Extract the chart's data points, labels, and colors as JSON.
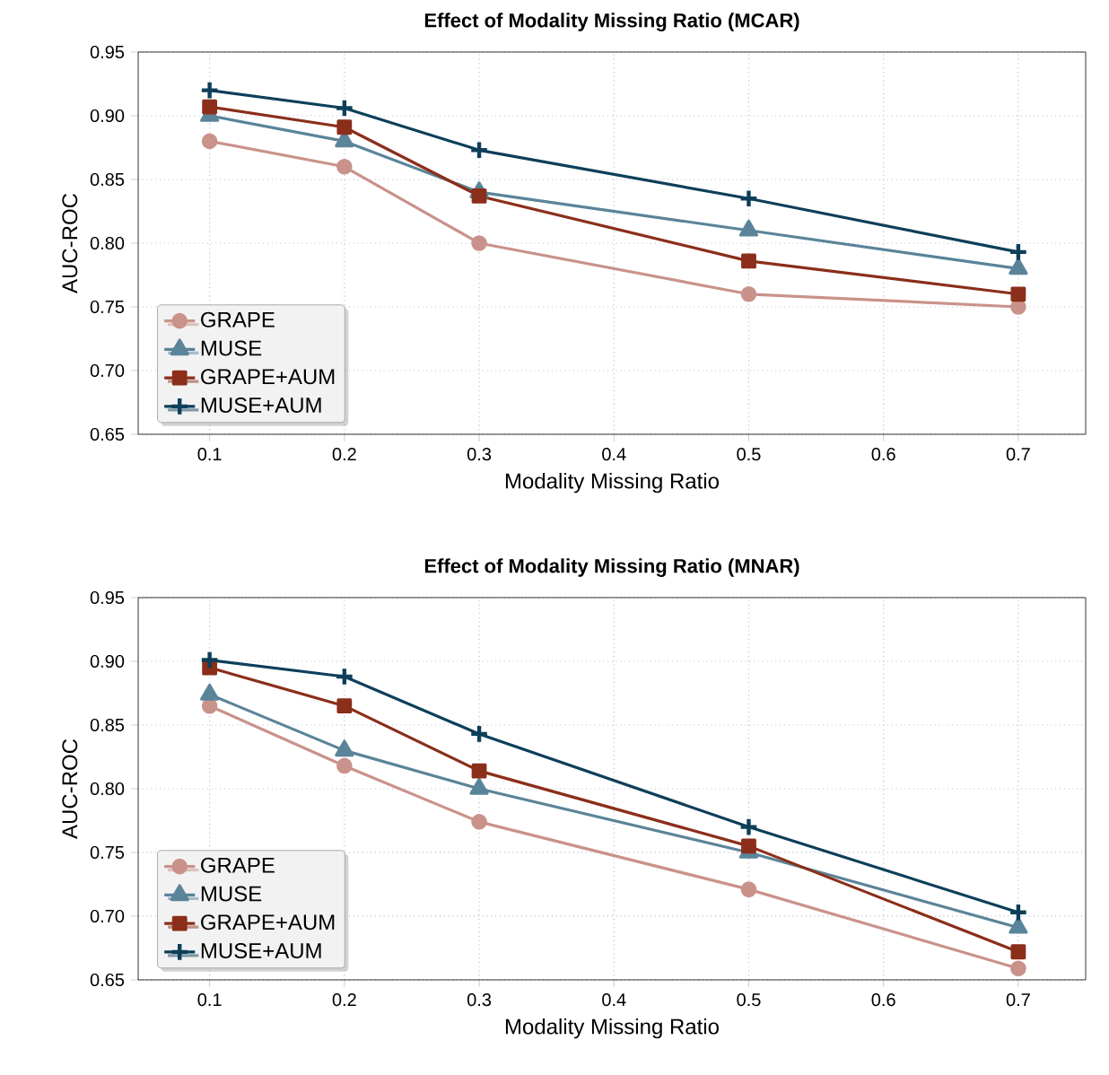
{
  "chart_data": [
    {
      "type": "line",
      "title": "**Effect of Modality Missing Ratio (MCAR)**",
      "xlabel": "Modality Missing Ratio",
      "ylabel": "AUC-ROC",
      "x": [
        0.1,
        0.2,
        0.3,
        0.5,
        0.7
      ],
      "series": [
        {
          "name": "GRAPE",
          "color": "#c9928a",
          "marker": "circle",
          "values": [
            0.88,
            0.86,
            0.8,
            0.76,
            0.75
          ]
        },
        {
          "name": "MUSE",
          "color": "#5a8499",
          "marker": "triangle",
          "values": [
            0.9,
            0.88,
            0.84,
            0.81,
            0.78
          ]
        },
        {
          "name": "GRAPE+AUM",
          "color": "#8b2e1a",
          "marker": "square",
          "values": [
            0.907,
            0.891,
            0.837,
            0.786,
            0.76
          ]
        },
        {
          "name": "MUSE+AUM",
          "color": "#0d3f5a",
          "marker": "cross",
          "values": [
            0.92,
            0.906,
            0.873,
            0.835,
            0.793
          ]
        }
      ],
      "xlim": [
        0.047,
        0.75
      ],
      "ylim": [
        0.65,
        0.95
      ],
      "xticks": [
        0.1,
        0.2,
        0.3,
        0.4,
        0.5,
        0.6,
        0.7
      ],
      "yticks": [
        {
          "value": 0.65,
          "label": "0.65"
        },
        {
          "value": 0.7,
          "label": "0.70"
        },
        {
          "value": 0.75,
          "label": "0.75"
        },
        {
          "value": 0.8,
          "label": "0.80"
        },
        {
          "value": 0.85,
          "label": "0.85"
        },
        {
          "value": 0.9,
          "label": "0.90"
        },
        {
          "value": 0.95,
          "label": "0.95"
        }
      ],
      "grid": true,
      "legend": "bottom left",
      "line_style": "solid"
    },
    {
      "type": "line",
      "title": "**Effect of Modality Missing Ratio (MNAR)**",
      "xlabel": "Modality Missing Ratio",
      "ylabel": "AUC-ROC",
      "x": [
        0.1,
        0.2,
        0.3,
        0.5,
        0.7
      ],
      "series": [
        {
          "name": "GRAPE",
          "color": "#c9928a",
          "marker": "circle",
          "values": [
            0.865,
            0.818,
            0.774,
            0.721,
            0.659
          ]
        },
        {
          "name": "MUSE",
          "color": "#5a8499",
          "marker": "triangle",
          "values": [
            0.874,
            0.83,
            0.8,
            0.75,
            0.691
          ]
        },
        {
          "name": "GRAPE+AUM",
          "color": "#8b2e1a",
          "marker": "square",
          "values": [
            0.895,
            0.865,
            0.814,
            0.755,
            0.672
          ]
        },
        {
          "name": "MUSE+AUM",
          "color": "#0d3f5a",
          "marker": "cross",
          "values": [
            0.901,
            0.888,
            0.843,
            0.77,
            0.703
          ]
        }
      ],
      "xlim": [
        0.047,
        0.75
      ],
      "ylim": [
        0.65,
        0.95
      ],
      "xticks": [
        0.1,
        0.2,
        0.3,
        0.4,
        0.5,
        0.6,
        0.7
      ],
      "yticks": [
        {
          "value": 0.65,
          "label": "0.65"
        },
        {
          "value": 0.7,
          "label": "0.70"
        },
        {
          "value": 0.75,
          "label": "0.75"
        },
        {
          "value": 0.8,
          "label": "0.80"
        },
        {
          "value": 0.85,
          "label": "0.85"
        },
        {
          "value": 0.9,
          "label": "0.90"
        },
        {
          "value": 0.95,
          "label": "0.95"
        }
      ],
      "grid": true,
      "legend": "bottom left",
      "line_style": "solid"
    }
  ]
}
